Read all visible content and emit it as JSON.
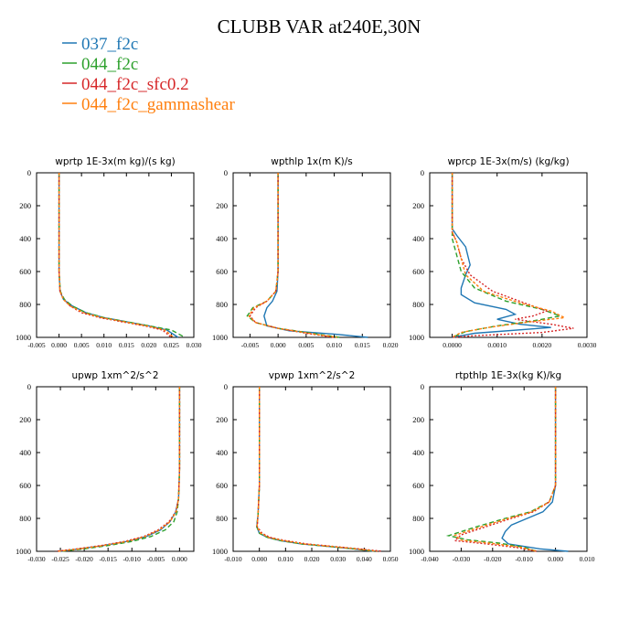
{
  "figure": {
    "title": "CLUBB VAR at240E,30N"
  },
  "legend": [
    {
      "name": "037_f2c",
      "color": "#1f77b4"
    },
    {
      "name": "044_f2c",
      "color": "#2ca02c"
    },
    {
      "name": "044_f2c_sfc0.2",
      "color": "#d62728"
    },
    {
      "name": "044_f2c_gammashear",
      "color": "#ff7f0e"
    }
  ],
  "chart_data": [
    {
      "type": "line",
      "title": "wprtp  1E-3x(m kg)/(s kg)",
      "xlim": [
        -0.005,
        0.03
      ],
      "xticks": [
        "-0.005",
        "0.000",
        "0.005",
        "0.010",
        "0.015",
        "0.020",
        "0.025",
        "0.030"
      ],
      "xtick_values": [
        -0.005,
        0.0,
        0.005,
        0.01,
        0.015,
        0.02,
        0.025,
        0.03
      ],
      "ylim": [
        0,
        1000
      ],
      "yticks": [
        "0",
        "200",
        "400",
        "600",
        "800",
        "1000"
      ],
      "ytick_values": [
        0,
        200,
        400,
        600,
        800,
        1000
      ],
      "series": [
        {
          "name": "037_f2c",
          "color": "#1f77b4",
          "dash": "",
          "x": [
            0.0,
            0.0,
            0.0,
            0.0,
            0.0002,
            0.001,
            0.003,
            0.006,
            0.01,
            0.015,
            0.02,
            0.024,
            0.0265
          ],
          "y": [
            0,
            200,
            400,
            600,
            720,
            770,
            810,
            850,
            880,
            905,
            930,
            955,
            1000
          ]
        },
        {
          "name": "044_f2c",
          "color": "#2ca02c",
          "dash": "5,3",
          "x": [
            0.0,
            0.0,
            0.0,
            0.0,
            0.0003,
            0.0012,
            0.003,
            0.006,
            0.01,
            0.015,
            0.02,
            0.025,
            0.028
          ],
          "y": [
            0,
            200,
            400,
            600,
            720,
            770,
            810,
            850,
            880,
            905,
            930,
            955,
            1000
          ]
        },
        {
          "name": "044_f2c_sfc0.2",
          "color": "#d62728",
          "dash": "2,2",
          "x": [
            0.0,
            0.0,
            0.0,
            0.0,
            0.0002,
            0.001,
            0.0025,
            0.005,
            0.009,
            0.014,
            0.019,
            0.023,
            0.025
          ],
          "y": [
            0,
            200,
            400,
            600,
            720,
            770,
            810,
            850,
            880,
            905,
            930,
            955,
            1000
          ]
        },
        {
          "name": "044_f2c_gammashear",
          "color": "#ff7f0e",
          "dash": "3,2",
          "x": [
            0.0,
            0.0,
            0.0,
            0.0,
            0.0002,
            0.001,
            0.0025,
            0.0055,
            0.0095,
            0.0145,
            0.0195,
            0.0235,
            0.0255
          ],
          "y": [
            0,
            200,
            400,
            600,
            720,
            770,
            810,
            850,
            880,
            905,
            930,
            955,
            1000
          ]
        }
      ]
    },
    {
      "type": "line",
      "title": "wpthlp  1x(m K)/s",
      "xlim": [
        -0.008,
        0.02
      ],
      "xticks": [
        "-0.005",
        "0.000",
        "0.005",
        "0.010",
        "0.015",
        "0.020"
      ],
      "xtick_values": [
        -0.005,
        0.0,
        0.005,
        0.01,
        0.015,
        0.02
      ],
      "ylim": [
        0,
        1000
      ],
      "yticks": [
        "0",
        "200",
        "400",
        "600",
        "800",
        "1000"
      ],
      "ytick_values": [
        0,
        200,
        400,
        600,
        800,
        1000
      ],
      "series": [
        {
          "name": "037_f2c",
          "color": "#1f77b4",
          "dash": "",
          "x": [
            0.0,
            0.0,
            0.0,
            0.0,
            -0.0002,
            -0.001,
            -0.002,
            -0.0025,
            -0.002,
            0.002,
            0.01,
            0.016
          ],
          "y": [
            0,
            200,
            400,
            600,
            720,
            780,
            820,
            870,
            930,
            960,
            980,
            1000
          ]
        },
        {
          "name": "044_f2c",
          "color": "#2ca02c",
          "dash": "5,3",
          "x": [
            0.0,
            0.0,
            0.0,
            0.0,
            -0.0004,
            -0.002,
            -0.0045,
            -0.0055,
            -0.004,
            0.0,
            0.006,
            0.011
          ],
          "y": [
            0,
            200,
            400,
            600,
            720,
            780,
            820,
            870,
            910,
            945,
            975,
            1000
          ]
        },
        {
          "name": "044_f2c_sfc0.2",
          "color": "#d62728",
          "dash": "2,2",
          "x": [
            0.0,
            0.0,
            0.0,
            0.0,
            -0.0004,
            -0.002,
            -0.004,
            -0.005,
            -0.004,
            0.0,
            0.005,
            0.01
          ],
          "y": [
            0,
            200,
            400,
            600,
            720,
            780,
            820,
            870,
            910,
            945,
            975,
            1000
          ]
        },
        {
          "name": "044_f2c_gammashear",
          "color": "#ff7f0e",
          "dash": "3,2",
          "x": [
            0.0,
            0.0,
            0.0,
            0.0,
            -0.0004,
            -0.002,
            -0.0043,
            -0.0052,
            -0.004,
            0.0,
            0.0055,
            0.0105
          ],
          "y": [
            0,
            200,
            400,
            600,
            720,
            780,
            820,
            870,
            910,
            945,
            975,
            1000
          ]
        }
      ]
    },
    {
      "type": "line",
      "title": "wprcp  1E-3x(m/s) (kg/kg)",
      "xlim": [
        -0.0005,
        0.003
      ],
      "xticks": [
        "0.0000",
        "0.0010",
        "0.0020",
        "0.0030"
      ],
      "xtick_values": [
        0.0,
        0.001,
        0.002,
        0.003
      ],
      "ylim": [
        0,
        1000
      ],
      "yticks": [
        "0",
        "200",
        "400",
        "600",
        "800",
        "1000"
      ],
      "ytick_values": [
        0,
        200,
        400,
        600,
        800,
        1000
      ],
      "series": [
        {
          "name": "037_f2c",
          "color": "#1f77b4",
          "dash": "",
          "x": [
            0.0,
            0.0,
            0.0,
            0.0001,
            0.0003,
            0.0004,
            0.0003,
            0.0002,
            0.0002,
            0.0005,
            0.0012,
            0.0014,
            0.001,
            0.0015,
            0.0022,
            0.0005,
            0.0
          ],
          "y": [
            0,
            200,
            340,
            380,
            450,
            560,
            620,
            700,
            740,
            790,
            830,
            860,
            890,
            920,
            940,
            975,
            1000
          ]
        },
        {
          "name": "044_f2c",
          "color": "#2ca02c",
          "dash": "5,3",
          "x": [
            0.0,
            0.0,
            0.0,
            0.0,
            0.0001,
            0.0002,
            0.0005,
            0.0012,
            0.002,
            0.0024,
            0.0018,
            0.001,
            0.0003,
            0.0
          ],
          "y": [
            0,
            200,
            360,
            400,
            500,
            600,
            700,
            780,
            830,
            870,
            900,
            930,
            965,
            1000
          ]
        },
        {
          "name": "044_f2c_sfc0.2",
          "color": "#d62728",
          "dash": "2,2",
          "x": [
            0.0,
            0.0,
            0.0,
            0.0001,
            0.0002,
            0.0004,
            0.0009,
            0.0016,
            0.0021,
            0.0018,
            0.0014,
            0.0022,
            0.0027,
            0.002,
            0.0005,
            0.0
          ],
          "y": [
            0,
            200,
            360,
            420,
            520,
            620,
            720,
            790,
            840,
            870,
            890,
            920,
            945,
            970,
            990,
            1000
          ]
        },
        {
          "name": "044_f2c_gammashear",
          "color": "#ff7f0e",
          "dash": "3,2",
          "x": [
            0.0,
            0.0,
            0.0,
            0.0001,
            0.0002,
            0.0003,
            0.0007,
            0.0015,
            0.0022,
            0.0025,
            0.0016,
            0.0008,
            0.0002,
            0.0
          ],
          "y": [
            0,
            200,
            360,
            420,
            520,
            620,
            720,
            790,
            840,
            880,
            910,
            940,
            970,
            1000
          ]
        }
      ]
    },
    {
      "type": "line",
      "title": "upwp  1xm^2/s^2",
      "xlim": [
        -0.03,
        0.003
      ],
      "xticks": [
        "-0.030",
        "-0.025",
        "-0.020",
        "-0.015",
        "-0.010",
        "-0.005",
        "0.000"
      ],
      "xtick_values": [
        -0.03,
        -0.025,
        -0.02,
        -0.015,
        -0.01,
        -0.005,
        0.0
      ],
      "ylim": [
        0,
        1000
      ],
      "yticks": [
        "0",
        "200",
        "400",
        "600",
        "800",
        "1000"
      ],
      "ytick_values": [
        0,
        200,
        400,
        600,
        800,
        1000
      ],
      "series": [
        {
          "name": "037_f2c",
          "color": "#1f77b4",
          "dash": "",
          "x": [
            0.0,
            0.0,
            0.0,
            -0.0002,
            -0.0008,
            -0.002,
            -0.004,
            -0.007,
            -0.011,
            -0.016,
            -0.021,
            -0.025
          ],
          "y": [
            0,
            200,
            500,
            680,
            760,
            820,
            870,
            910,
            940,
            965,
            985,
            1000
          ]
        },
        {
          "name": "044_f2c",
          "color": "#2ca02c",
          "dash": "5,3",
          "x": [
            0.0,
            0.0,
            0.0,
            -0.0002,
            -0.0005,
            -0.0012,
            -0.003,
            -0.006,
            -0.01,
            -0.015,
            -0.02,
            -0.025
          ],
          "y": [
            0,
            200,
            500,
            680,
            760,
            820,
            870,
            910,
            940,
            965,
            985,
            1000
          ]
        },
        {
          "name": "044_f2c_sfc0.2",
          "color": "#d62728",
          "dash": "2,2",
          "x": [
            0.0,
            0.0,
            0.0,
            -0.0002,
            -0.0008,
            -0.0022,
            -0.0045,
            -0.0075,
            -0.0115,
            -0.0165,
            -0.0215,
            -0.026
          ],
          "y": [
            0,
            200,
            500,
            680,
            760,
            820,
            870,
            910,
            940,
            965,
            985,
            1000
          ]
        },
        {
          "name": "044_f2c_gammashear",
          "color": "#ff7f0e",
          "dash": "3,2",
          "x": [
            0.0,
            0.0,
            0.0,
            -0.0002,
            -0.0007,
            -0.002,
            -0.0042,
            -0.0072,
            -0.011,
            -0.016,
            -0.021,
            -0.0255
          ],
          "y": [
            0,
            200,
            500,
            680,
            760,
            820,
            870,
            910,
            940,
            965,
            985,
            1000
          ]
        }
      ]
    },
    {
      "type": "line",
      "title": "vpwp  1xm^2/s^2",
      "xlim": [
        -0.01,
        0.05
      ],
      "xticks": [
        "-0.010",
        "0.000",
        "0.010",
        "0.020",
        "0.030",
        "0.040",
        "0.050"
      ],
      "xtick_values": [
        -0.01,
        0.0,
        0.01,
        0.02,
        0.03,
        0.04,
        0.05
      ],
      "ylim": [
        0,
        1000
      ],
      "yticks": [
        "0",
        "200",
        "400",
        "600",
        "800",
        "1000"
      ],
      "ytick_values": [
        0,
        200,
        400,
        600,
        800,
        1000
      ],
      "series": [
        {
          "name": "037_f2c",
          "color": "#1f77b4",
          "dash": "",
          "x": [
            0.0,
            0.0,
            0.0,
            -0.0005,
            -0.001,
            0.0,
            0.003,
            0.008,
            0.016,
            0.026,
            0.036,
            0.044
          ],
          "y": [
            0,
            200,
            600,
            780,
            850,
            890,
            915,
            935,
            955,
            970,
            985,
            1000
          ]
        },
        {
          "name": "044_f2c",
          "color": "#2ca02c",
          "dash": "5,3",
          "x": [
            0.0,
            0.0,
            0.0,
            -0.0005,
            -0.001,
            0.0,
            0.003,
            0.008,
            0.016,
            0.026,
            0.036,
            0.044
          ],
          "y": [
            0,
            200,
            600,
            780,
            850,
            890,
            915,
            935,
            955,
            970,
            985,
            1000
          ]
        },
        {
          "name": "044_f2c_sfc0.2",
          "color": "#d62728",
          "dash": "2,2",
          "x": [
            0.0,
            0.0,
            0.0,
            -0.0005,
            -0.0008,
            0.001,
            0.004,
            0.01,
            0.018,
            0.028,
            0.038,
            0.047
          ],
          "y": [
            0,
            200,
            600,
            780,
            850,
            890,
            915,
            935,
            955,
            970,
            985,
            1000
          ]
        },
        {
          "name": "044_f2c_gammashear",
          "color": "#ff7f0e",
          "dash": "3,2",
          "x": [
            0.0,
            0.0,
            0.0,
            -0.0005,
            -0.0009,
            0.0005,
            0.0035,
            0.009,
            0.017,
            0.027,
            0.037,
            0.045
          ],
          "y": [
            0,
            200,
            600,
            780,
            850,
            890,
            915,
            935,
            955,
            970,
            985,
            1000
          ]
        }
      ]
    },
    {
      "type": "line",
      "title": "rtpthlp  1E-3x(kg K)/kg",
      "xlim": [
        -0.04,
        0.01
      ],
      "xticks": [
        "-0.040",
        "-0.030",
        "-0.020",
        "-0.010",
        "0.000",
        "0.010"
      ],
      "xtick_values": [
        -0.04,
        -0.03,
        -0.02,
        -0.01,
        0.0,
        0.01
      ],
      "ylim": [
        0,
        1000
      ],
      "yticks": [
        "0",
        "200",
        "400",
        "600",
        "800",
        "1000"
      ],
      "ytick_values": [
        0,
        200,
        400,
        600,
        800,
        1000
      ],
      "series": [
        {
          "name": "037_f2c",
          "color": "#1f77b4",
          "dash": "",
          "x": [
            0.0,
            0.0,
            0.0,
            -0.001,
            -0.004,
            -0.009,
            -0.014,
            -0.016,
            -0.017,
            -0.015,
            -0.005,
            0.004
          ],
          "y": [
            0,
            200,
            600,
            700,
            760,
            800,
            840,
            880,
            920,
            955,
            985,
            1000
          ]
        },
        {
          "name": "044_f2c",
          "color": "#2ca02c",
          "dash": "5,3",
          "x": [
            0.0,
            0.0,
            0.0,
            -0.002,
            -0.008,
            -0.016,
            -0.025,
            -0.034,
            -0.028,
            -0.018,
            -0.01,
            -0.006
          ],
          "y": [
            0,
            200,
            600,
            700,
            760,
            800,
            850,
            905,
            930,
            950,
            975,
            1000
          ]
        },
        {
          "name": "044_f2c_sfc0.2",
          "color": "#d62728",
          "dash": "2,2",
          "x": [
            0.0,
            0.0,
            0.0,
            -0.002,
            -0.007,
            -0.014,
            -0.022,
            -0.03,
            -0.032,
            -0.022,
            -0.012,
            -0.006
          ],
          "y": [
            0,
            200,
            600,
            700,
            760,
            800,
            850,
            900,
            935,
            955,
            978,
            1000
          ]
        },
        {
          "name": "044_f2c_gammashear",
          "color": "#ff7f0e",
          "dash": "3,2",
          "x": [
            0.0,
            0.0,
            0.0,
            -0.002,
            -0.0075,
            -0.015,
            -0.0235,
            -0.032,
            -0.03,
            -0.02,
            -0.011,
            -0.006
          ],
          "y": [
            0,
            200,
            600,
            700,
            760,
            800,
            850,
            903,
            932,
            952,
            976,
            1000
          ]
        }
      ]
    }
  ]
}
